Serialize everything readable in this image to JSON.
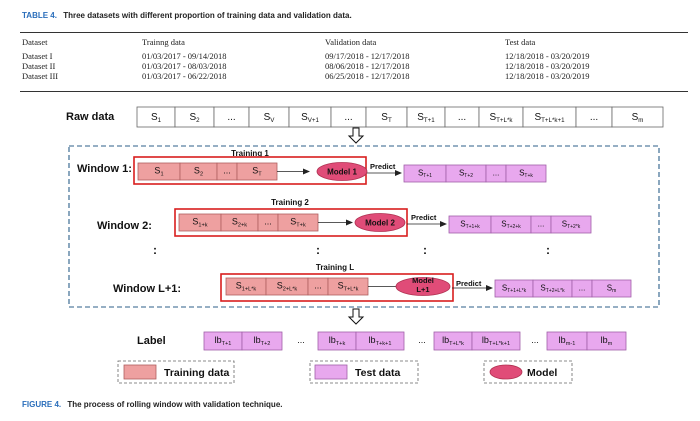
{
  "table": {
    "caption_label": "TABLE 4.",
    "caption_text": "Three datasets with different proportion of training data and validation data.",
    "headers": [
      "Dataset",
      "Trainng data",
      "Validation data",
      "Test data"
    ],
    "rows": [
      [
        "Dataset I",
        "01/03/2017 - 09/14/2018",
        "09/17/2018 - 12/17/2018",
        "12/18/2018 - 03/20/2019"
      ],
      [
        "Dataset II",
        "01/03/2017 - 08/03/2018",
        "08/06/2018 - 12/17/2018",
        "12/18/2018 - 03/20/2019"
      ],
      [
        "Dataset III",
        "01/03/2017 - 06/22/2018",
        "06/25/2018 - 12/17/2018",
        "12/18/2018 - 03/20/2019"
      ]
    ]
  },
  "figure": {
    "caption_label": "FIGURE 4.",
    "caption_text": "The process of rolling window with validation technique.",
    "colors": {
      "train": "#eea0a0",
      "test": "#e8a8ee",
      "model": "#e04c78",
      "window": "#d81e1e",
      "dash": "#2c5f8a"
    },
    "raw": {
      "label": "Raw data",
      "cells": [
        {
          "b": "S",
          "s": "1"
        },
        {
          "b": "S",
          "s": "2"
        },
        {
          "b": "...",
          "s": ""
        },
        {
          "b": "S",
          "s": "V"
        },
        {
          "b": "S",
          "s": "V+1"
        },
        {
          "b": "...",
          "s": ""
        },
        {
          "b": "S",
          "s": "T"
        },
        {
          "b": "S",
          "s": "T+1"
        },
        {
          "b": "...",
          "s": ""
        },
        {
          "b": "S",
          "s": "T+L*k"
        },
        {
          "b": "S",
          "s": "T+L*k+1"
        },
        {
          "b": "...",
          "s": ""
        },
        {
          "b": "S",
          "s": "m"
        }
      ]
    },
    "windows": [
      {
        "label": "Window 1:",
        "training": "Training 1",
        "model": "Model 1",
        "predict": "Predict",
        "train_cells": [
          {
            "b": "S",
            "s": "1"
          },
          {
            "b": "S",
            "s": "2"
          },
          {
            "b": "...",
            "s": ""
          },
          {
            "b": "S",
            "s": "T"
          }
        ],
        "test_cells": [
          {
            "b": "S",
            "s": "T+1"
          },
          {
            "b": "S",
            "s": "T+2"
          },
          {
            "b": "...",
            "s": ""
          },
          {
            "b": "S",
            "s": "T+k"
          }
        ]
      },
      {
        "label": "Window 2:",
        "training": "Training 2",
        "model": "Model 2",
        "predict": "Predict",
        "train_cells": [
          {
            "b": "S",
            "s": "1+k"
          },
          {
            "b": "S",
            "s": "2+k"
          },
          {
            "b": "...",
            "s": ""
          },
          {
            "b": "S",
            "s": "T+k"
          }
        ],
        "test_cells": [
          {
            "b": "S",
            "s": "T+1+k"
          },
          {
            "b": "S",
            "s": "T+2+k"
          },
          {
            "b": "...",
            "s": ""
          },
          {
            "b": "S",
            "s": "T+2*k"
          }
        ]
      },
      {
        "label": "Window L+1:",
        "training": "Training L",
        "model": "Model L+1",
        "predict": "Predict",
        "train_cells": [
          {
            "b": "S",
            "s": "1+L*k"
          },
          {
            "b": "S",
            "s": "2+L*k"
          },
          {
            "b": "...",
            "s": ""
          },
          {
            "b": "S",
            "s": "T+L*k"
          }
        ],
        "test_cells": [
          {
            "b": "S",
            "s": "T+1+L*k"
          },
          {
            "b": "S",
            "s": "T+2+L*k"
          },
          {
            "b": "...",
            "s": ""
          },
          {
            "b": "S",
            "s": "m"
          }
        ]
      }
    ],
    "vdots": ":",
    "label_row": {
      "label": "Label",
      "cells": [
        {
          "b": "lb",
          "s": "T+1"
        },
        {
          "b": "lb",
          "s": "T+2"
        },
        {
          "b": "...",
          "s": ""
        },
        {
          "b": "lb",
          "s": "T+k"
        },
        {
          "b": "lb",
          "s": "T+k+1"
        },
        {
          "b": "...",
          "s": ""
        },
        {
          "b": "lb",
          "s": "T+L*k"
        },
        {
          "b": "lb",
          "s": "T+L*k+1"
        },
        {
          "b": "...",
          "s": ""
        },
        {
          "b": "lb",
          "s": "m-1"
        },
        {
          "b": "lb",
          "s": "m"
        }
      ]
    },
    "legend": [
      {
        "key": "train",
        "label": "Training data"
      },
      {
        "key": "test",
        "label": "Test data"
      },
      {
        "key": "model",
        "label": "Model"
      }
    ]
  }
}
